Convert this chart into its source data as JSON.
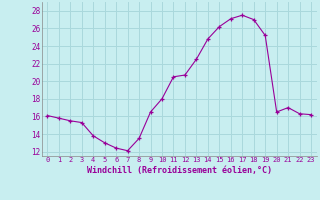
{
  "xlabel": "Windchill (Refroidissement éolien,°C)",
  "background_color": "#c8eef0",
  "grid_color": "#aad8dc",
  "line_color": "#990099",
  "xlim_min": -0.5,
  "xlim_max": 23.5,
  "ylim_min": 11.5,
  "ylim_max": 29.0,
  "yticks": [
    12,
    14,
    16,
    18,
    20,
    22,
    24,
    26,
    28
  ],
  "xticks": [
    0,
    1,
    2,
    3,
    4,
    5,
    6,
    7,
    8,
    9,
    10,
    11,
    12,
    13,
    14,
    15,
    16,
    17,
    18,
    19,
    20,
    21,
    22,
    23
  ],
  "hours": [
    0,
    1,
    2,
    3,
    4,
    5,
    6,
    7,
    8,
    9,
    10,
    11,
    12,
    13,
    14,
    15,
    16,
    17,
    18,
    19,
    20,
    21,
    22,
    23
  ],
  "values": [
    16.1,
    15.8,
    15.5,
    15.3,
    13.8,
    13.0,
    12.4,
    12.1,
    13.5,
    16.5,
    18.0,
    20.5,
    20.7,
    22.5,
    24.8,
    26.2,
    27.1,
    27.5,
    27.0,
    25.2,
    16.5,
    17.0,
    16.3,
    16.2
  ]
}
